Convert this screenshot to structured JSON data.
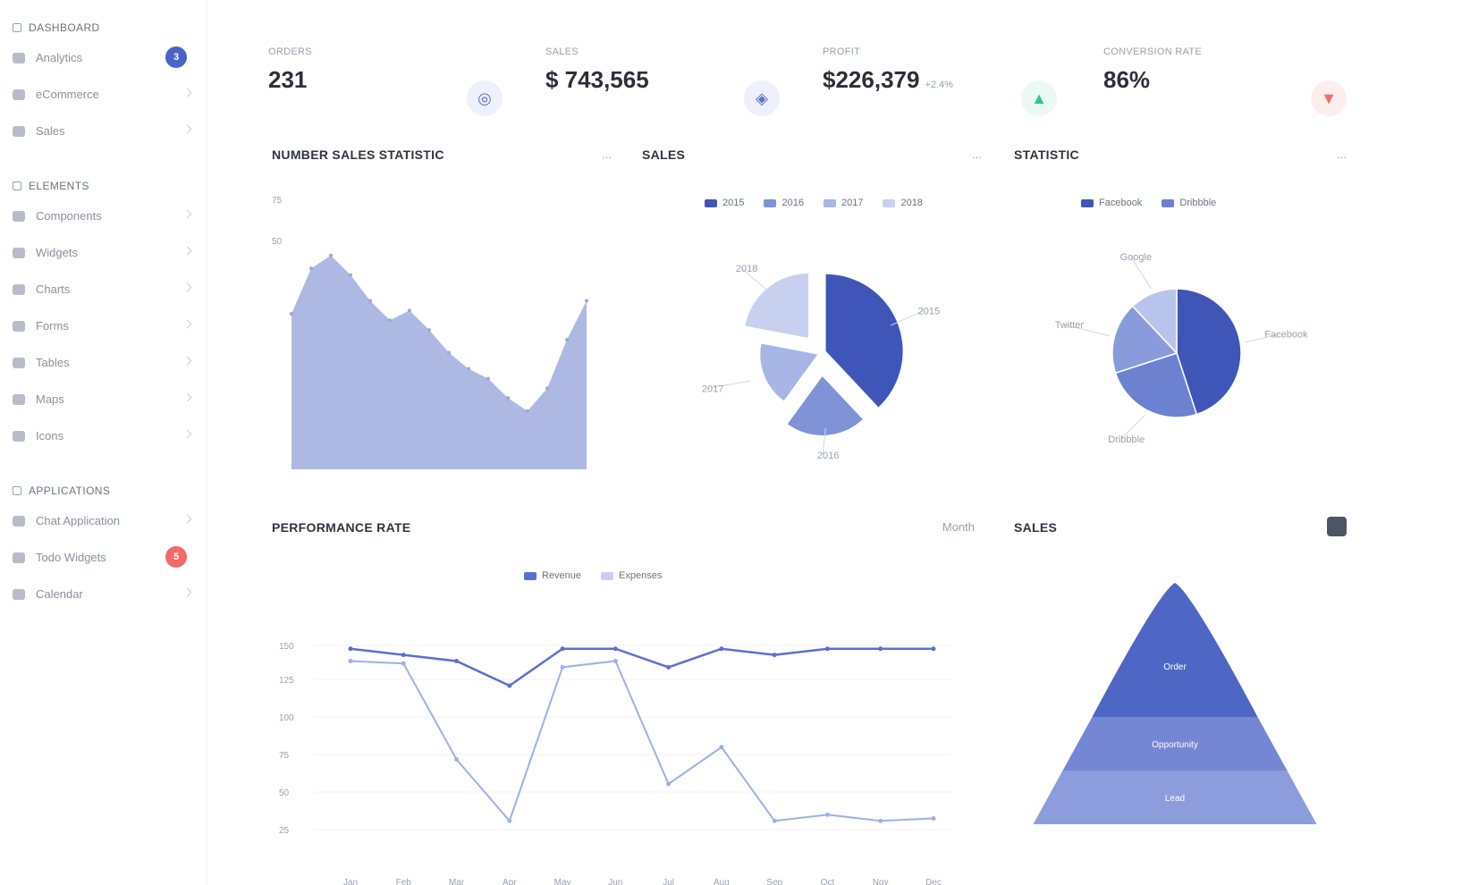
{
  "sidebar": {
    "groups": [
      {
        "title": "Dashboard",
        "items": [
          {
            "label": "Analytics",
            "badge": "3",
            "badge_color": "#4a63c7"
          },
          {
            "label": "eCommerce",
            "badge": ""
          },
          {
            "label": "Sales",
            "badge": ""
          }
        ]
      },
      {
        "title": "Elements",
        "items": [
          {
            "label": "Components",
            "badge": ""
          },
          {
            "label": "Widgets",
            "badge": ""
          },
          {
            "label": "Charts",
            "badge": ""
          },
          {
            "label": "Forms",
            "badge": ""
          },
          {
            "label": "Tables",
            "badge": ""
          },
          {
            "label": "Maps",
            "badge": ""
          },
          {
            "label": "Icons",
            "badge": ""
          }
        ]
      },
      {
        "title": "Applications",
        "items": [
          {
            "label": "Chat Application",
            "badge": ""
          },
          {
            "label": "Todo Widgets",
            "badge": "5",
            "badge_color": "#f26a6a"
          },
          {
            "label": "Calendar",
            "badge": ""
          }
        ]
      }
    ]
  },
  "stats": [
    {
      "label": "Orders",
      "value": "231",
      "sub": "",
      "icon": "cart-icon",
      "icon_color": "#5b6fd1",
      "icon_bg": "#eef0fb"
    },
    {
      "label": "Sales",
      "value": "$ 743,565",
      "sub": "",
      "icon": "tag-icon",
      "icon_color": "#5b6fd1",
      "icon_bg": "#eef0fb"
    },
    {
      "label": "Profit",
      "value": "$226,379",
      "sub": "+2.4%",
      "icon": "arrow-up-icon",
      "icon_color": "#34c38f",
      "icon_bg": "#eafaf3"
    },
    {
      "label": "Conversion Rate",
      "value": "86%",
      "sub": "",
      "icon": "arrow-down-icon",
      "icon_color": "#f26a6a",
      "icon_bg": "#fdeeee"
    }
  ],
  "panels": {
    "area": {
      "title": "Number Sales Statistic",
      "action": "..."
    },
    "pie1": {
      "title": "Sales",
      "action": "...",
      "legend": [
        "2015",
        "2016",
        "2017",
        "2018"
      ]
    },
    "pie2": {
      "title": "Statistic",
      "action": "...",
      "legend": [
        "Facebook",
        "Dribbble"
      ]
    },
    "bars": {
      "title": "Performance Rate",
      "action": "Month",
      "legend": [
        "Revenue",
        "Expenses"
      ]
    },
    "funnel": {
      "title": "Sales",
      "action": ""
    }
  },
  "chart_data": [
    {
      "type": "area",
      "title": "Number Sales Statistic",
      "y_ticks": [
        "75",
        "50"
      ],
      "values": [
        48,
        62,
        66,
        60,
        52,
        46,
        49,
        43,
        36,
        31,
        28,
        22,
        18,
        25,
        40,
        52
      ],
      "ylim": [
        0,
        80
      ],
      "color": "#aeb9e3"
    },
    {
      "type": "pie",
      "title": "Sales",
      "labels": [
        "2015",
        "2016",
        "2017",
        "2018"
      ],
      "values": [
        38,
        22,
        18,
        22
      ],
      "colors": [
        "#3f56b8",
        "#7f93d6",
        "#a8b6e6",
        "#c7d0ef"
      ]
    },
    {
      "type": "pie",
      "title": "Statistic",
      "labels": [
        "Facebook",
        "Dribbble",
        "Twitter",
        "Google"
      ],
      "values": [
        45,
        25,
        18,
        12
      ],
      "colors": [
        "#3f56b8",
        "#6c81cf",
        "#8a9bdb",
        "#b9c4ec"
      ]
    },
    {
      "type": "line",
      "title": "Performance Rate",
      "categories": [
        "Jan",
        "Feb",
        "Mar",
        "Apr",
        "May",
        "Jun",
        "Jul",
        "Aug",
        "Sep",
        "Oct",
        "Nov",
        "Dec"
      ],
      "y_ticks": [
        "150",
        "125",
        "100",
        "75",
        "50",
        "25"
      ],
      "series": [
        {
          "name": "Revenue",
          "values": [
            150,
            145,
            140,
            120,
            150,
            150,
            135,
            150,
            145,
            150,
            150,
            150
          ]
        },
        {
          "name": "Expenses",
          "values": [
            140,
            138,
            60,
            10,
            135,
            140,
            40,
            70,
            10,
            15,
            10,
            12
          ]
        }
      ],
      "ylim": [
        0,
        160
      ]
    },
    {
      "type": "funnel",
      "title": "Sales",
      "labels": [
        "Lead",
        "Opportunity",
        "Order"
      ],
      "values": [
        100,
        70,
        40
      ],
      "colors": [
        "#8c9cdc",
        "#7486d4",
        "#4e66c4"
      ]
    }
  ]
}
